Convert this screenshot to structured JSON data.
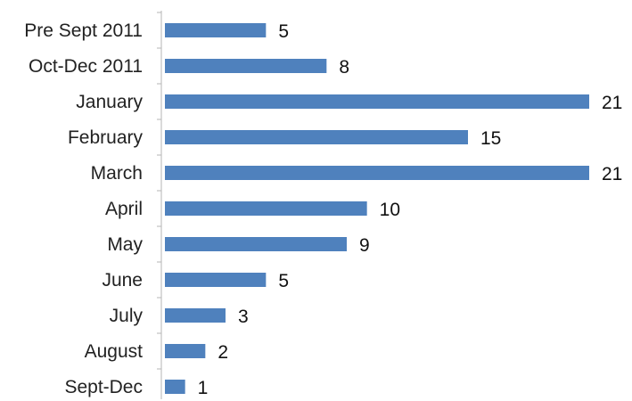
{
  "chart_data": {
    "type": "bar",
    "orientation": "horizontal",
    "categories": [
      "Pre Sept 2011",
      "Oct-Dec 2011",
      "January",
      "February",
      "March",
      "April",
      "May",
      "June",
      "July",
      "August",
      "Sept-Dec"
    ],
    "values": [
      5,
      8,
      21,
      15,
      21,
      10,
      9,
      5,
      3,
      2,
      1
    ],
    "xlim": [
      0,
      21
    ],
    "data_labels": true,
    "legend": "none",
    "grid": false,
    "bar_color": "#4f81bd"
  }
}
